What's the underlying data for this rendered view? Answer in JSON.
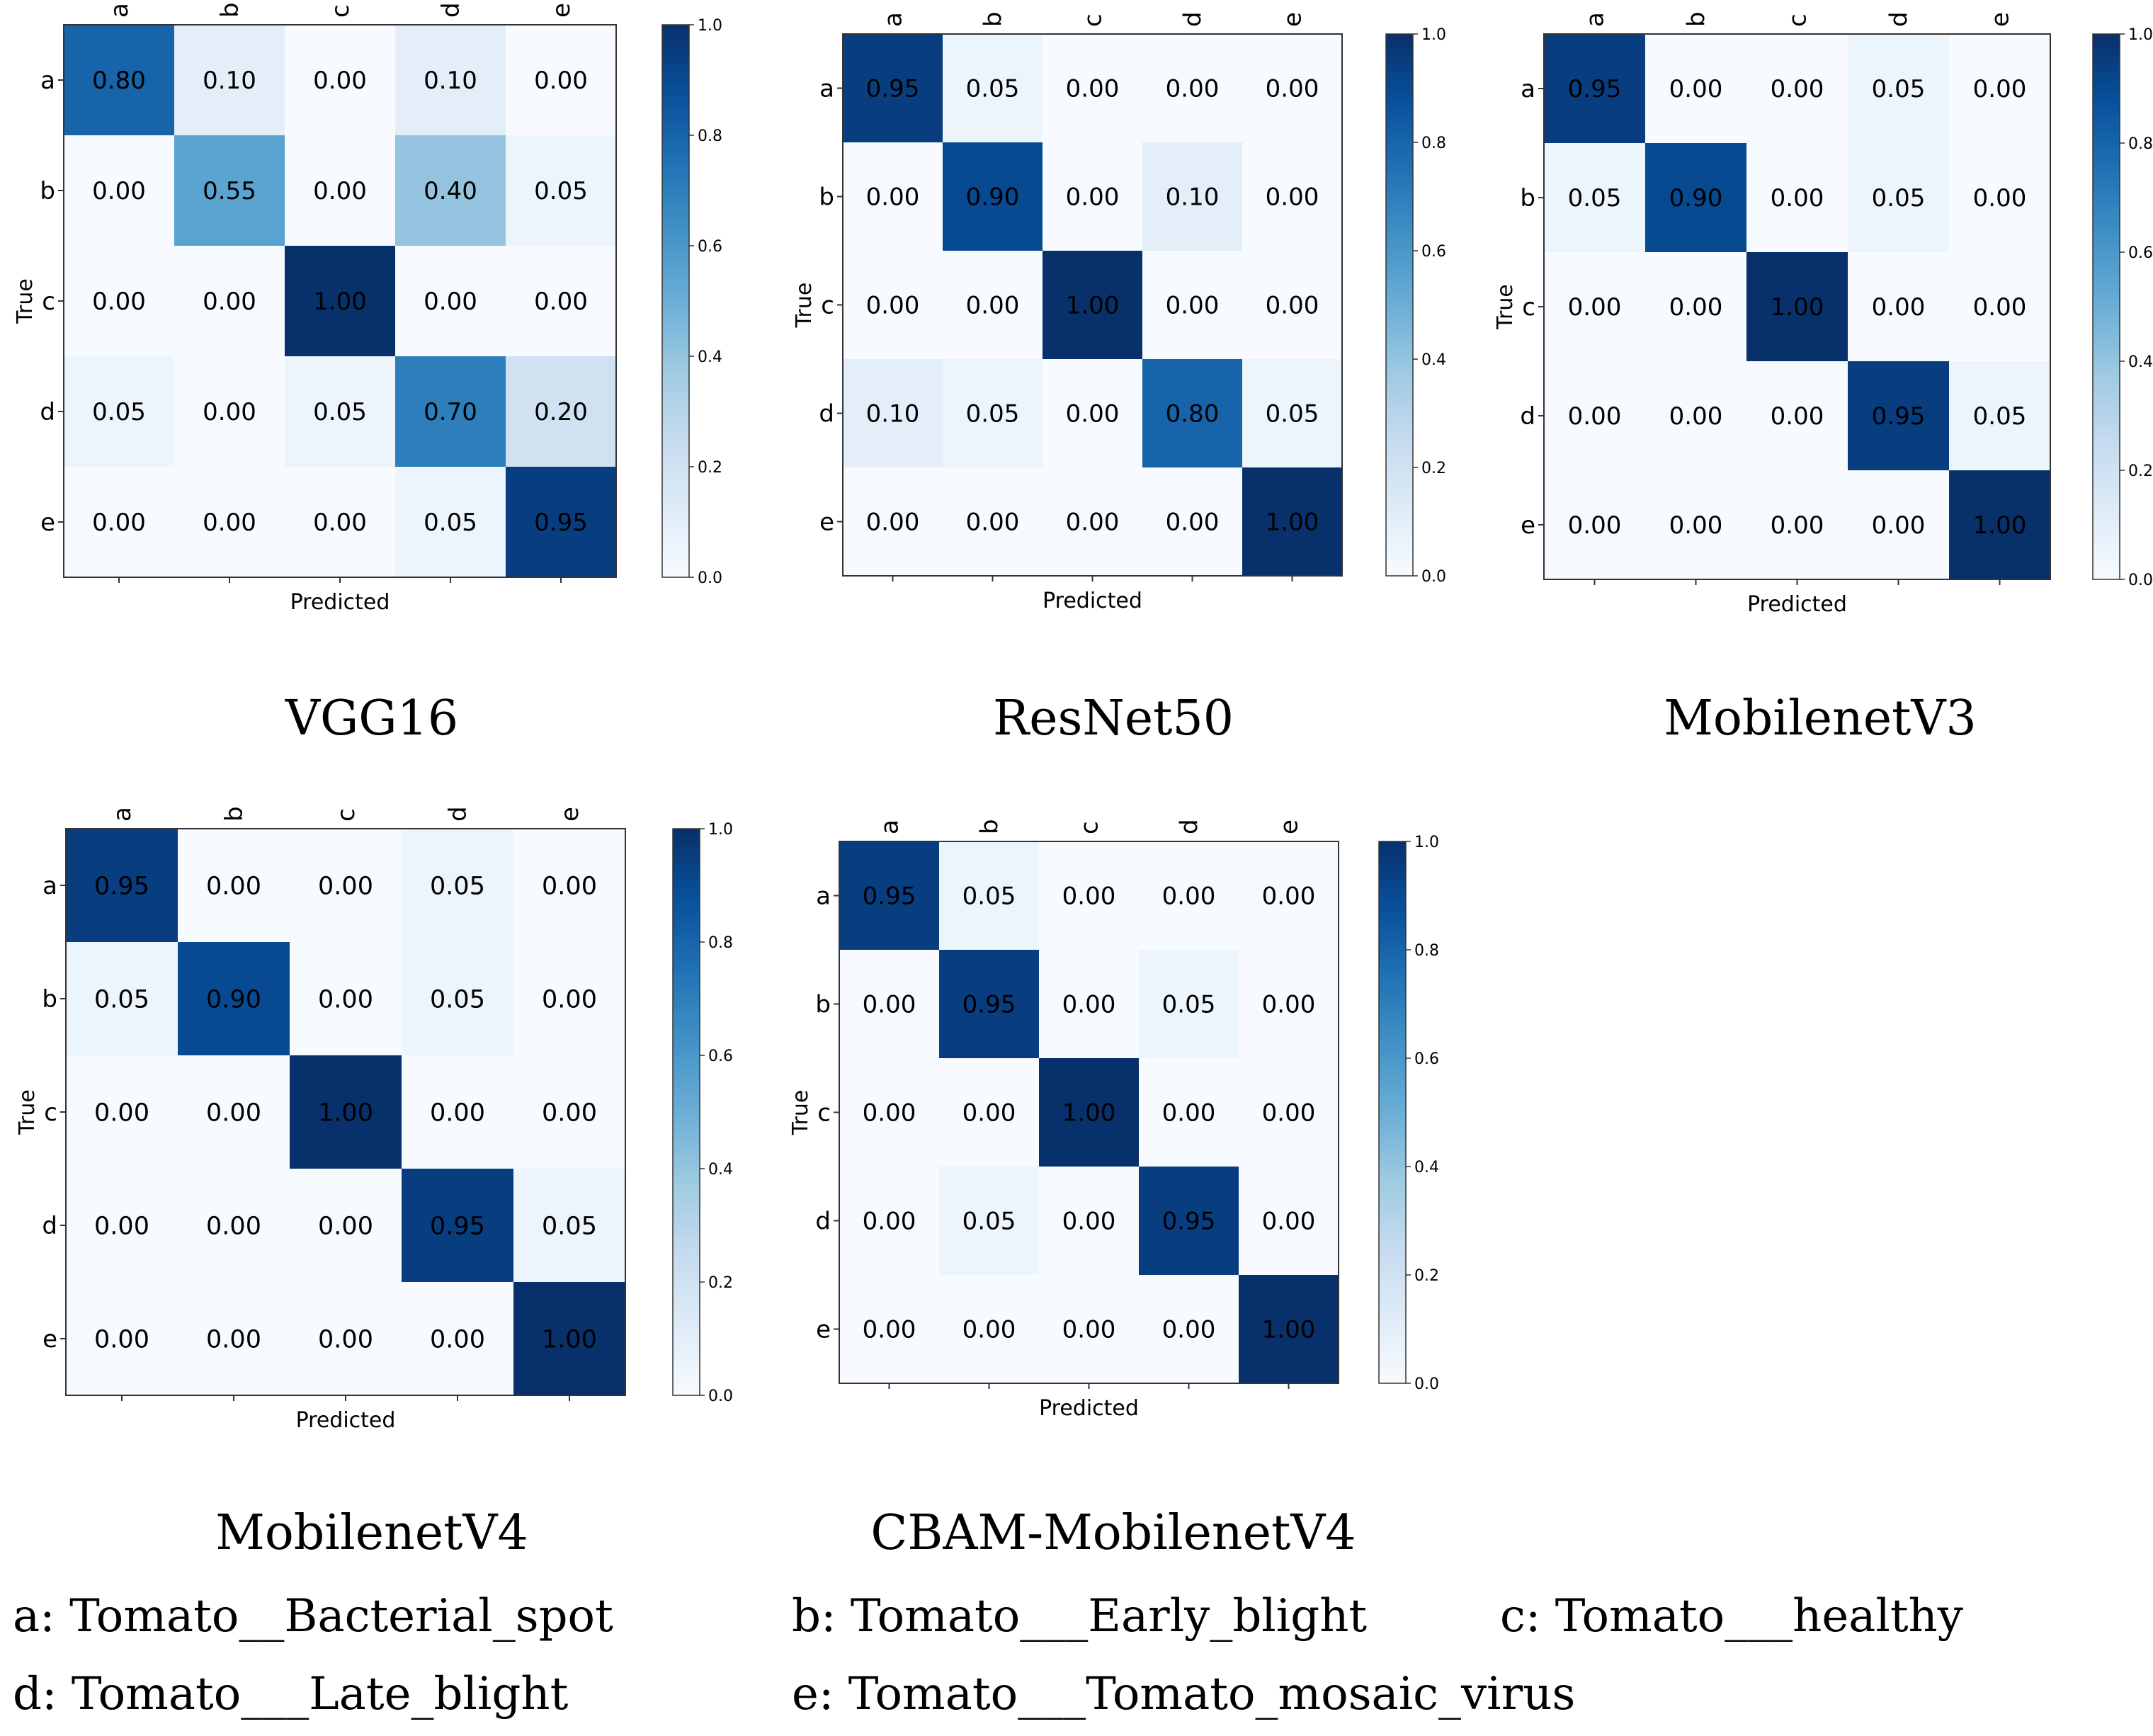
{
  "chart_data": [
    {
      "type": "heatmap",
      "title": "VGG16",
      "xlabel": "Predicted",
      "ylabel": "True",
      "categories": [
        "a",
        "b",
        "c",
        "d",
        "e"
      ],
      "values": [
        [
          0.8,
          0.1,
          0.0,
          0.1,
          0.0
        ],
        [
          0.0,
          0.55,
          0.0,
          0.4,
          0.05
        ],
        [
          0.0,
          0.0,
          1.0,
          0.0,
          0.0
        ],
        [
          0.05,
          0.0,
          0.05,
          0.7,
          0.2
        ],
        [
          0.0,
          0.0,
          0.0,
          0.05,
          0.95
        ]
      ],
      "colorbar": {
        "range": [
          0.0,
          1.0
        ],
        "ticks": [
          "0.0",
          "0.2",
          "0.4",
          "0.6",
          "0.8",
          "1.0"
        ]
      }
    },
    {
      "type": "heatmap",
      "title": "ResNet50",
      "xlabel": "Predicted",
      "ylabel": "True",
      "categories": [
        "a",
        "b",
        "c",
        "d",
        "e"
      ],
      "values": [
        [
          0.95,
          0.05,
          0.0,
          0.0,
          0.0
        ],
        [
          0.0,
          0.9,
          0.0,
          0.1,
          0.0
        ],
        [
          0.0,
          0.0,
          1.0,
          0.0,
          0.0
        ],
        [
          0.1,
          0.05,
          0.0,
          0.8,
          0.05
        ],
        [
          0.0,
          0.0,
          0.0,
          0.0,
          1.0
        ]
      ],
      "colorbar": {
        "range": [
          0.0,
          1.0
        ],
        "ticks": [
          "0.0",
          "0.2",
          "0.4",
          "0.6",
          "0.8",
          "1.0"
        ]
      }
    },
    {
      "type": "heatmap",
      "title": "MobilenetV3",
      "xlabel": "Predicted",
      "ylabel": "True",
      "categories": [
        "a",
        "b",
        "c",
        "d",
        "e"
      ],
      "values": [
        [
          0.95,
          0.0,
          0.0,
          0.05,
          0.0
        ],
        [
          0.05,
          0.9,
          0.0,
          0.05,
          0.0
        ],
        [
          0.0,
          0.0,
          1.0,
          0.0,
          0.0
        ],
        [
          0.0,
          0.0,
          0.0,
          0.95,
          0.05
        ],
        [
          0.0,
          0.0,
          0.0,
          0.0,
          1.0
        ]
      ],
      "colorbar": {
        "range": [
          0.0,
          1.0
        ],
        "ticks": [
          "0.0",
          "0.2",
          "0.4",
          "0.6",
          "0.8",
          "1.0"
        ]
      }
    },
    {
      "type": "heatmap",
      "title": "MobilenetV4",
      "xlabel": "Predicted",
      "ylabel": "True",
      "categories": [
        "a",
        "b",
        "c",
        "d",
        "e"
      ],
      "values": [
        [
          0.95,
          0.0,
          0.0,
          0.05,
          0.0
        ],
        [
          0.05,
          0.9,
          0.0,
          0.05,
          0.0
        ],
        [
          0.0,
          0.0,
          1.0,
          0.0,
          0.0
        ],
        [
          0.0,
          0.0,
          0.0,
          0.95,
          0.05
        ],
        [
          0.0,
          0.0,
          0.0,
          0.0,
          1.0
        ]
      ],
      "colorbar": {
        "range": [
          0.0,
          1.0
        ],
        "ticks": [
          "0.0",
          "0.2",
          "0.4",
          "0.6",
          "0.8",
          "1.0"
        ]
      }
    },
    {
      "type": "heatmap",
      "title": "CBAM-MobilenetV4",
      "xlabel": "Predicted",
      "ylabel": "True",
      "categories": [
        "a",
        "b",
        "c",
        "d",
        "e"
      ],
      "values": [
        [
          0.95,
          0.05,
          0.0,
          0.0,
          0.0
        ],
        [
          0.0,
          0.95,
          0.0,
          0.05,
          0.0
        ],
        [
          0.0,
          0.0,
          1.0,
          0.0,
          0.0
        ],
        [
          0.0,
          0.05,
          0.0,
          0.95,
          0.0
        ],
        [
          0.0,
          0.0,
          0.0,
          0.0,
          1.0
        ]
      ],
      "colorbar": {
        "range": [
          0.0,
          1.0
        ],
        "ticks": [
          "0.0",
          "0.2",
          "0.4",
          "0.6",
          "0.8",
          "1.0"
        ]
      }
    }
  ],
  "legend_items": [
    "a: Tomato__Bacterial_spot",
    "b: Tomato___Early_blight",
    "c: Tomato___healthy",
    "d: Tomato___Late_blight",
    "e: Tomato___Tomato_mosaic_virus"
  ],
  "colormap": "Blues"
}
